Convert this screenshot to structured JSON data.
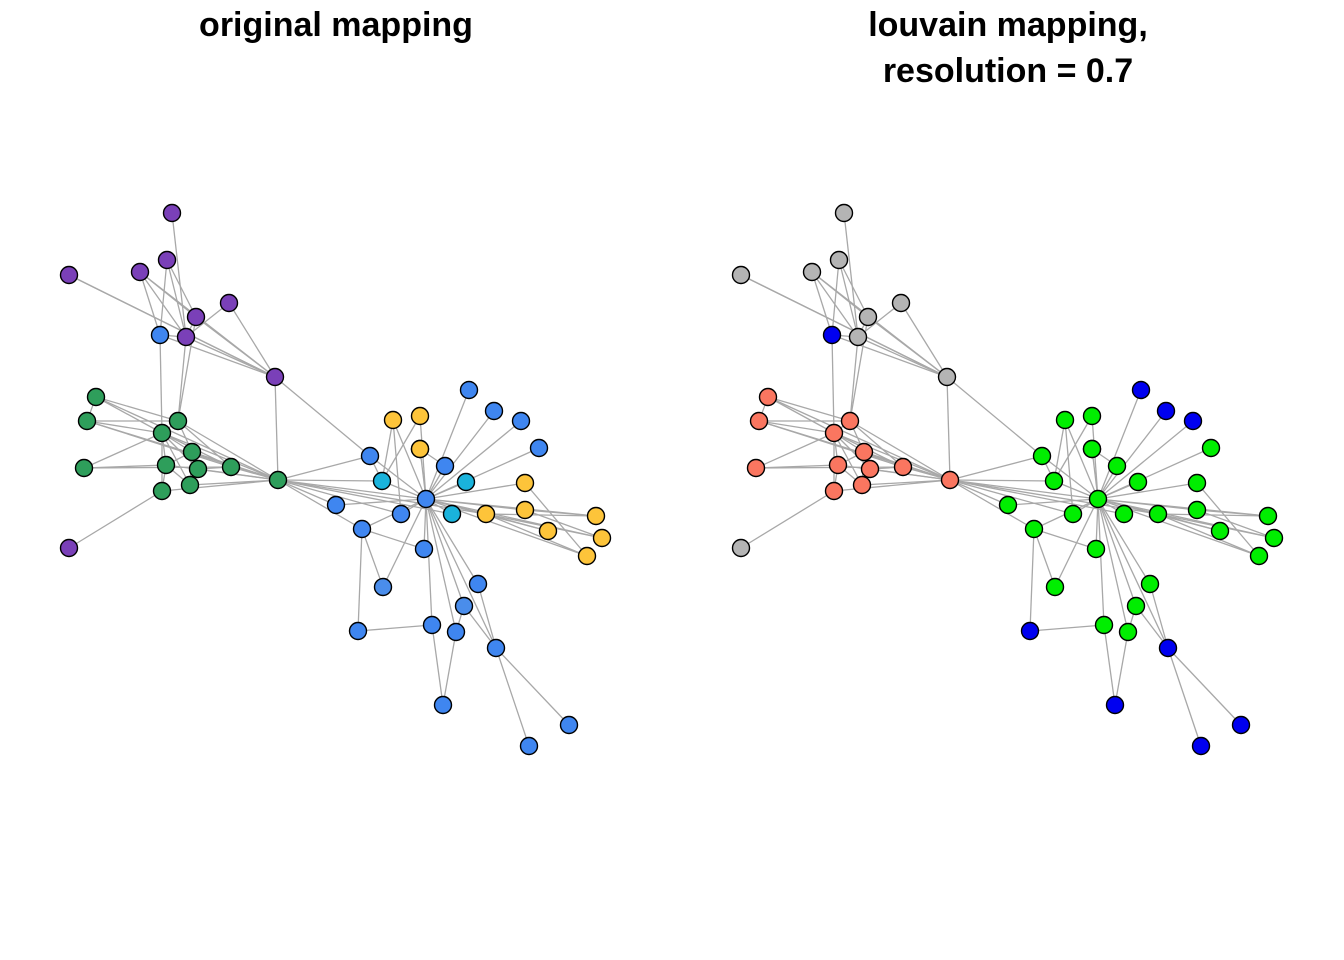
{
  "panels": [
    {
      "title_lines": [
        "original mapping"
      ],
      "colors": [
        "#2E9E5B",
        "#7A40B8",
        "#3F86F0",
        "#1AB3DC",
        "#FDC43A",
        "#3F86F0",
        "#3F86F0",
        "#1AB3DC",
        "#1AB3DC",
        "#2E9E5B",
        "#7A40B8",
        "#3F86F0",
        "#3F86F0",
        "#1AB3DC",
        "#3F86F0",
        "#3F86F0",
        "#4A8DEB",
        "#3F86F0",
        "#3F86F0",
        "#4A8DEB",
        "#FDC43A",
        "#FDC43A",
        "#3F86F0",
        "#2E9E5B",
        "#2E9E5B",
        "#2E9E5B",
        "#2E9E5B",
        "#2E9E5B",
        "#2E9E5B",
        "#2E9E5B",
        "#2E9E5B",
        "#2E9E5B",
        "#2E9E5B",
        "#7A40B8",
        "#7A40B8",
        "#7A40B8",
        "#7A40B8",
        "#7A40B8",
        "#7A40B8",
        "#7A40B8",
        "#3F86F0",
        "#3F86F0",
        "#3F86F0",
        "#3F86F0",
        "#3F86F0",
        "#3F86F0",
        "#3F86F0",
        "#3F86F0",
        "#3F86F0",
        "#3F86F0",
        "#FDC43A",
        "#FDC43A",
        "#FDC43A",
        "#FDC43A",
        "#FDC43A",
        "#FDC43A",
        "#FDC43A"
      ]
    },
    {
      "title_lines": [
        "louvain mapping,",
        "resolution = 0.7"
      ],
      "colors": [
        "#FA7660",
        "#B4B4B4",
        "#00EE00",
        "#00EE00",
        "#00EE00",
        "#00EE00",
        "#00EE00",
        "#00EE00",
        "#00EE00",
        "#FA7660",
        "#B4B4B4",
        "#00EE00",
        "#00EE00",
        "#00EE00",
        "#00EE00",
        "#00EE00",
        "#00EE00",
        "#00EE00",
        "#00EE00",
        "#00EE00",
        "#00EE00",
        "#00EE00",
        "#00EE00",
        "#FA7660",
        "#FA7660",
        "#FA7660",
        "#FA7660",
        "#FA7660",
        "#FA7660",
        "#FA7660",
        "#FA7660",
        "#FA7660",
        "#FA7660",
        "#B4B4B4",
        "#B4B4B4",
        "#B4B4B4",
        "#B4B4B4",
        "#B4B4B4",
        "#B4B4B4",
        "#B4B4B4",
        "#0000F0",
        "#0000F0",
        "#0000F0",
        "#0000F0",
        "#0000F0",
        "#0000F0",
        "#0000F0",
        "#0000F0",
        "#0000F0",
        "#00EE00",
        "#00EE00",
        "#00EE00",
        "#00EE00",
        "#00EE00",
        "#00EE00",
        "#00EE00",
        "#00EE00"
      ]
    }
  ],
  "style": {
    "edge_color": "#A8A8A8",
    "node_border": "#000000",
    "background": "#FFFFFF"
  }
}
